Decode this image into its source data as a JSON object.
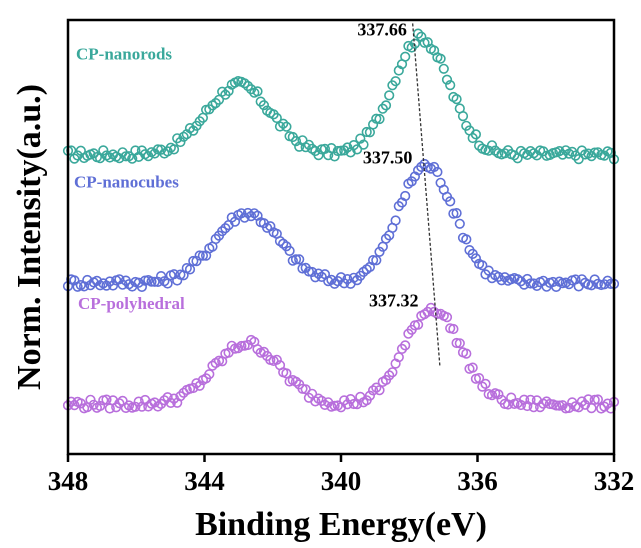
{
  "chart_data": {
    "type": "scatter",
    "title": "",
    "xlabel": "Binding Energy(eV)",
    "ylabel": "Norm. Intensity(a.u.)",
    "xlim": [
      348,
      332
    ],
    "x_reversed": true,
    "ylim": [
      0,
      10
    ],
    "y_ticks_shown": false,
    "grid": false,
    "x_ticks": [
      {
        "value": 348,
        "label": "348"
      },
      {
        "value": 344,
        "label": "344"
      },
      {
        "value": 340,
        "label": "340"
      },
      {
        "value": 336,
        "label": "336"
      },
      {
        "value": 332,
        "label": "332"
      }
    ],
    "marker": "open-circle",
    "series": [
      {
        "name": "CP-nanorods",
        "color": "#3aa89b",
        "baseline": 6.9,
        "peaks": [
          {
            "center": 343.0,
            "height": 1.6,
            "width": 0.95
          },
          {
            "center": 337.66,
            "height": 2.7,
            "width": 0.82
          }
        ],
        "peak_label": "337.66",
        "peak_label_value": 337.66
      },
      {
        "name": "CP-nanocubes",
        "color": "#5f6fd6",
        "baseline": 3.95,
        "peaks": [
          {
            "center": 342.75,
            "height": 1.6,
            "width": 0.95
          },
          {
            "center": 337.5,
            "height": 2.7,
            "width": 0.82
          }
        ],
        "peak_label": "337.50",
        "peak_label_value": 337.5
      },
      {
        "name": "CP-polyhedral",
        "color": "#b86fdc",
        "baseline": 1.15,
        "peaks": [
          {
            "center": 342.75,
            "height": 1.4,
            "width": 0.95
          },
          {
            "center": 337.32,
            "height": 2.2,
            "width": 0.82
          }
        ],
        "peak_label": "337.32",
        "peak_label_value": 337.32
      }
    ],
    "guide_line": {
      "from": [
        337.9,
        9.92
      ],
      "to": [
        337.1,
        2.0
      ],
      "style": "dashed",
      "color": "#333333"
    }
  }
}
